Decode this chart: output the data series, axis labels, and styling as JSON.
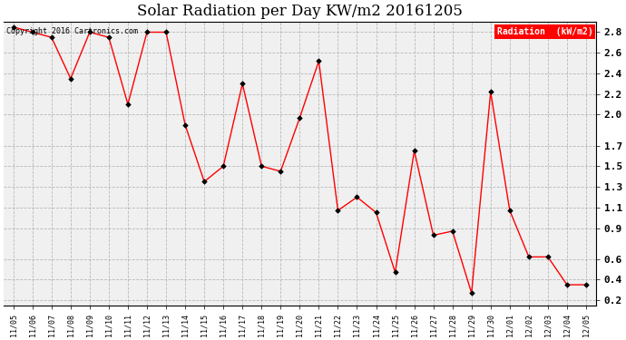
{
  "title": "Solar Radiation per Day KW/m2 20161205",
  "copyright_text": "Copyright 2016 Cartronics.com",
  "legend_label": "Radiation  (kW/m2)",
  "dates": [
    "11/05",
    "11/06",
    "11/07",
    "11/08",
    "11/09",
    "11/10",
    "11/11",
    "11/12",
    "11/13",
    "11/14",
    "11/15",
    "11/16",
    "11/17",
    "11/18",
    "11/19",
    "11/20",
    "11/21",
    "11/22",
    "11/23",
    "11/24",
    "11/25",
    "11/26",
    "11/27",
    "11/28",
    "11/29",
    "11/30",
    "12/01",
    "12/02",
    "12/03",
    "12/04",
    "12/05"
  ],
  "values": [
    2.85,
    2.8,
    2.75,
    2.35,
    2.8,
    2.75,
    2.1,
    2.8,
    2.8,
    1.9,
    1.35,
    1.5,
    2.3,
    1.5,
    1.45,
    1.97,
    2.52,
    1.07,
    1.2,
    1.05,
    0.47,
    1.65,
    0.83,
    0.87,
    0.27,
    2.22,
    1.07,
    0.62,
    0.62,
    0.35,
    0.35
  ],
  "ylim": [
    0.15,
    2.9
  ],
  "yticks": [
    0.2,
    0.4,
    0.6,
    0.9,
    1.1,
    1.3,
    1.5,
    1.7,
    2.0,
    2.2,
    2.4,
    2.6,
    2.8
  ],
  "line_color": "red",
  "marker_color": "black",
  "bg_color": "#ffffff",
  "plot_bg_color": "#f0f0f0",
  "grid_color": "#aaaaaa",
  "title_fontsize": 12,
  "legend_bg": "red",
  "legend_text_color": "white"
}
